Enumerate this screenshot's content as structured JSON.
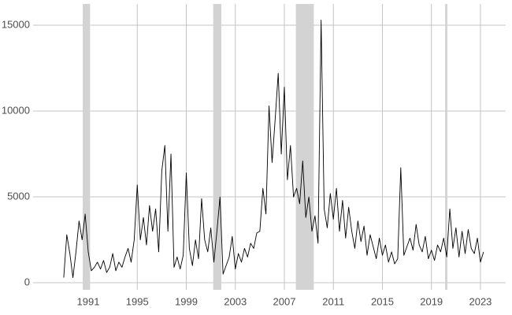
{
  "chart_data": {
    "type": "line",
    "x": [
      1989.0,
      1989.25,
      1989.5,
      1989.75,
      1990.0,
      1990.25,
      1990.5,
      1990.75,
      1991.0,
      1991.25,
      1991.5,
      1991.75,
      1992.0,
      1992.25,
      1992.5,
      1992.75,
      1993.0,
      1993.25,
      1993.5,
      1993.75,
      1994.0,
      1994.25,
      1994.5,
      1994.75,
      1995.0,
      1995.25,
      1995.5,
      1995.75,
      1996.0,
      1996.25,
      1996.5,
      1996.75,
      1997.0,
      1997.25,
      1997.5,
      1997.75,
      1998.0,
      1998.25,
      1998.5,
      1998.75,
      1999.0,
      1999.25,
      1999.5,
      1999.75,
      2000.0,
      2000.25,
      2000.5,
      2000.75,
      2001.0,
      2001.25,
      2001.5,
      2001.75,
      2002.0,
      2002.25,
      2002.5,
      2002.75,
      2003.0,
      2003.25,
      2003.5,
      2003.75,
      2004.0,
      2004.25,
      2004.5,
      2004.75,
      2005.0,
      2005.25,
      2005.5,
      2005.75,
      2006.0,
      2006.25,
      2006.5,
      2006.75,
      2007.0,
      2007.25,
      2007.5,
      2007.75,
      2008.0,
      2008.25,
      2008.5,
      2008.75,
      2009.0,
      2009.25,
      2009.5,
      2009.75,
      2010.0,
      2010.25,
      2010.5,
      2010.75,
      2011.0,
      2011.25,
      2011.5,
      2011.75,
      2012.0,
      2012.25,
      2012.5,
      2012.75,
      2013.0,
      2013.25,
      2013.5,
      2013.75,
      2014.0,
      2014.25,
      2014.5,
      2014.75,
      2015.0,
      2015.25,
      2015.5,
      2015.75,
      2016.0,
      2016.25,
      2016.5,
      2016.75,
      2017.0,
      2017.25,
      2017.5,
      2017.75,
      2018.0,
      2018.25,
      2018.5,
      2018.75,
      2019.0,
      2019.25,
      2019.5,
      2019.75,
      2020.0,
      2020.25,
      2020.5,
      2020.75,
      2021.0,
      2021.25,
      2021.5,
      2021.75,
      2022.0,
      2022.25,
      2022.5,
      2022.75,
      2023.0,
      2023.25
    ],
    "values": [
      300,
      2800,
      1700,
      300,
      1800,
      3600,
      2500,
      4000,
      1800,
      700,
      900,
      1200,
      800,
      1300,
      600,
      900,
      1700,
      700,
      1200,
      900,
      1500,
      2000,
      1200,
      2500,
      5700,
      2500,
      3800,
      2200,
      4500,
      3000,
      4300,
      1800,
      6500,
      8000,
      3000,
      7500,
      900,
      1500,
      800,
      1600,
      6400,
      2000,
      1000,
      2500,
      1400,
      4900,
      2500,
      1800,
      3200,
      1200,
      3000,
      5000,
      500,
      1000,
      1500,
      2700,
      800,
      1700,
      1200,
      2000,
      1500,
      2300,
      2000,
      2900,
      3000,
      5500,
      4000,
      10300,
      7000,
      9500,
      12200,
      7500,
      11400,
      6000,
      8000,
      5000,
      5500,
      4600,
      7100,
      3800,
      5000,
      3000,
      3900,
      2300,
      15300,
      4300,
      3200,
      5200,
      3700,
      5500,
      3000,
      4800,
      2600,
      4400,
      3000,
      2000,
      3600,
      2400,
      3300,
      1600,
      2800,
      2100,
      1400,
      2600,
      1600,
      2200,
      1200,
      1800,
      1100,
      1400,
      6700,
      1600,
      2100,
      2600,
      1900,
      3400,
      2200,
      1800,
      2700,
      1400,
      1900,
      1300,
      2200,
      1800,
      2600,
      1500,
      4300,
      2000,
      3200,
      1500,
      3000,
      1700,
      3100,
      2000,
      1700,
      2600,
      1200,
      1800
    ],
    "color": "#000000",
    "shaded_regions": [
      [
        1990.55,
        1991.15
      ],
      [
        2001.2,
        2001.86
      ],
      [
        2007.94,
        2009.4
      ],
      [
        2020.12,
        2020.3
      ]
    ],
    "shade_color": "#d3d3d3",
    "xlim": [
      1986.5,
      2025.06
    ],
    "xticks": [
      1991,
      1995,
      1999,
      2003,
      2007,
      2011,
      2015,
      2019,
      2023
    ],
    "ylim": [
      -410,
      16240
    ],
    "yticks": [
      0,
      5000,
      10000,
      15000
    ],
    "grid": true
  }
}
